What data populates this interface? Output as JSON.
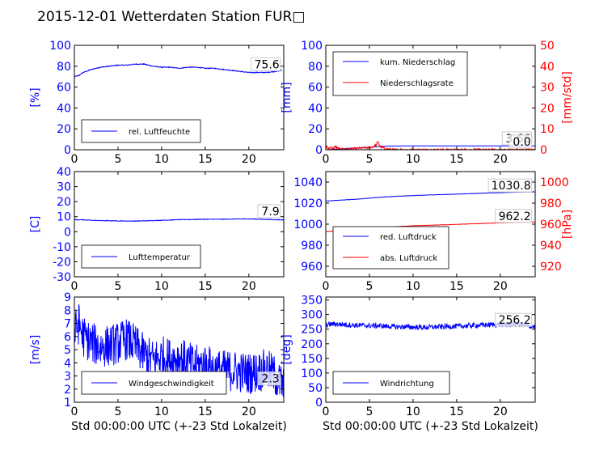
{
  "title": "2015-12-01 Wetterdaten Station FUR□",
  "colors": {
    "primary": "#0000ff",
    "secondary": "#ff0000",
    "text": "#000000"
  },
  "chart_data": [
    {
      "id": "humidity",
      "type": "line",
      "xlabel": "",
      "ylabel": "[%]",
      "xlim": [
        0,
        24
      ],
      "ylim": [
        0,
        100
      ],
      "xticks": [
        0,
        5,
        10,
        15,
        20
      ],
      "yticks": [
        0,
        20,
        40,
        60,
        80,
        100
      ],
      "legend": "lower-left",
      "annotations": [
        {
          "text": "75.6",
          "x": 23.6,
          "y": 78
        }
      ],
      "series": [
        {
          "name": "rel. Luftfeuchte",
          "color": "#0000ff",
          "noise": 0.4,
          "x": [
            0,
            0.5,
            1,
            2,
            3,
            4,
            5,
            6,
            7,
            8,
            8.5,
            9,
            10,
            11,
            12,
            13,
            14,
            15,
            16,
            17,
            18,
            19,
            20,
            21,
            22,
            23,
            23.8
          ],
          "y": [
            70,
            71,
            74,
            77,
            79,
            80,
            81,
            81,
            82,
            82,
            81,
            80,
            79,
            79,
            78,
            79,
            79,
            78,
            78,
            77,
            76,
            75,
            74,
            74,
            74,
            75,
            76
          ]
        }
      ]
    },
    {
      "id": "rain",
      "type": "line",
      "xlabel": "",
      "ylabel": "[mm]",
      "y2label": "[mm/std]",
      "xlim": [
        0,
        24
      ],
      "ylim": [
        0,
        100
      ],
      "y2lim": [
        0,
        50
      ],
      "xticks": [
        0,
        5,
        10,
        15,
        20
      ],
      "yticks": [
        0,
        20,
        40,
        60,
        80,
        100
      ],
      "y2ticks": [
        0,
        10,
        20,
        30,
        40,
        50
      ],
      "legend": "top-left",
      "annotations": [
        {
          "text": "3.66",
          "x": 23.6,
          "y": 7
        },
        {
          "text": "0.0",
          "x": 23.6,
          "y": 4
        }
      ],
      "series": [
        {
          "name": "kum. Niederschlag",
          "color": "#0000ff",
          "axis": "left",
          "x": [
            0,
            1,
            2,
            3,
            4,
            5,
            5.5,
            6,
            6.5,
            7,
            8,
            10,
            12,
            15,
            18,
            20,
            22,
            24
          ],
          "y": [
            0,
            0.5,
            1.0,
            1.4,
            1.8,
            2.2,
            2.6,
            3.0,
            3.3,
            3.5,
            3.6,
            3.62,
            3.64,
            3.65,
            3.66,
            3.66,
            3.66,
            3.66
          ]
        },
        {
          "name": "Niederschlagsrate",
          "color": "#ff0000",
          "axis": "right",
          "noise": 0.5,
          "x": [
            0,
            0.1,
            0.3,
            0.5,
            0.8,
            1,
            1.5,
            2,
            3,
            4,
            5,
            5.5,
            5.8,
            6,
            6.2,
            6.5,
            7,
            7.5,
            8,
            9,
            10,
            12,
            15,
            18,
            20,
            22,
            24
          ],
          "y": [
            0,
            2.0,
            0.5,
            1.0,
            0.3,
            1.5,
            0.5,
            0.3,
            0.5,
            0.8,
            1.0,
            1.5,
            2.5,
            4.0,
            1.5,
            1.0,
            0.3,
            0.1,
            0,
            0,
            0,
            0,
            0,
            0,
            0,
            0,
            0
          ]
        }
      ]
    },
    {
      "id": "temperature",
      "type": "line",
      "xlabel": "",
      "ylabel": "[C]",
      "xlim": [
        0,
        24
      ],
      "ylim": [
        -30,
        40
      ],
      "xticks": [
        0,
        5,
        10,
        15,
        20
      ],
      "yticks": [
        -30,
        -20,
        -10,
        0,
        10,
        20,
        30,
        40
      ],
      "legend": "lower-left",
      "annotations": [
        {
          "text": "7.9",
          "x": 23.6,
          "y": 11
        }
      ],
      "series": [
        {
          "name": "Lufttemperatur",
          "color": "#0000ff",
          "noise": 0.2,
          "x": [
            0,
            1,
            2,
            3,
            4,
            5,
            6,
            7,
            8,
            9,
            10,
            11,
            12,
            13,
            14,
            15,
            16,
            17,
            18,
            19,
            20,
            21,
            22,
            23,
            24
          ],
          "y": [
            8,
            7.9,
            7.6,
            7.4,
            7.3,
            7.2,
            7.1,
            7.1,
            7.2,
            7.4,
            7.6,
            7.8,
            8,
            8.1,
            8.2,
            8.3,
            8.3,
            8.3,
            8.4,
            8.5,
            8.5,
            8.4,
            8.2,
            8.0,
            7.9
          ]
        }
      ]
    },
    {
      "id": "pressure",
      "type": "line",
      "xlabel": "",
      "ylabel": "",
      "y2label": "[hPa]",
      "xlim": [
        0,
        24
      ],
      "ylim": [
        950,
        1050
      ],
      "y2lim": [
        910,
        1010
      ],
      "xticks": [
        0,
        5,
        10,
        15,
        20
      ],
      "yticks": [
        960,
        980,
        1000,
        1020,
        1040
      ],
      "y2ticks": [
        920,
        940,
        960,
        980,
        1000
      ],
      "legend": "lower-left",
      "annotations": [
        {
          "text": "1030.8",
          "x": 23.6,
          "y": 1033
        },
        {
          "text": "962.2",
          "x": 23.6,
          "y": 1004
        }
      ],
      "series": [
        {
          "name": "red. Luftdruck",
          "color": "#0000ff",
          "axis": "left",
          "noise": 0.15,
          "x": [
            0,
            2,
            4,
            6,
            8,
            10,
            12,
            14,
            16,
            18,
            20,
            22,
            24
          ],
          "y": [
            1022,
            1023,
            1024,
            1025.5,
            1026.5,
            1027.2,
            1027.8,
            1028.3,
            1028.9,
            1029.5,
            1030.0,
            1030.5,
            1030.8
          ]
        },
        {
          "name": "abs. Luftdruck",
          "color": "#ff0000",
          "axis": "right",
          "noise": 0.15,
          "x": [
            0,
            2,
            4,
            6,
            8,
            10,
            12,
            14,
            16,
            18,
            20,
            22,
            24
          ],
          "y": [
            953,
            954,
            955.2,
            956.5,
            957.6,
            958.5,
            959.0,
            959.5,
            960.1,
            960.7,
            961.3,
            961.8,
            962.2
          ]
        }
      ]
    },
    {
      "id": "wind",
      "type": "line",
      "xlabel": "Std 00:00:00 UTC (+-23 Std Lokalzeit)",
      "ylabel": "[m/s]",
      "xlim": [
        0,
        24
      ],
      "ylim": [
        1,
        9
      ],
      "xticks": [
        0,
        5,
        10,
        15,
        20
      ],
      "yticks": [
        1,
        2,
        3,
        4,
        5,
        6,
        7,
        8,
        9
      ],
      "legend": "lower-left",
      "annotations": [
        {
          "text": "2.3",
          "x": 23.6,
          "y": 2.5
        }
      ],
      "series": [
        {
          "name": "Windgeschwindigkeit",
          "color": "#0000ff",
          "noise": 1.6,
          "x": [
            0,
            0.5,
            1,
            2,
            3,
            4,
            5,
            6,
            7,
            8,
            9,
            10,
            11,
            12,
            13,
            14,
            15,
            16,
            17,
            18,
            19,
            20,
            21,
            22,
            23,
            23.5,
            24
          ],
          "y": [
            6.2,
            7.0,
            6.0,
            5.5,
            5.2,
            5.3,
            5.5,
            5.8,
            5.3,
            4.6,
            4.2,
            4.5,
            4.3,
            4.4,
            4.0,
            3.8,
            3.9,
            3.5,
            3.4,
            3.4,
            3.3,
            3.2,
            3.3,
            3.5,
            3.0,
            2.5,
            2.3
          ]
        }
      ]
    },
    {
      "id": "winddir",
      "type": "line",
      "xlabel": "Std 00:00:00 UTC (+-23 Std Lokalzeit)",
      "ylabel": "[deg]",
      "xlim": [
        0,
        24
      ],
      "ylim": [
        0,
        360
      ],
      "xticks": [
        0,
        5,
        10,
        15,
        20
      ],
      "yticks": [
        0,
        50,
        100,
        150,
        200,
        250,
        300,
        350
      ],
      "legend": "lower-left",
      "annotations": [
        {
          "text": "256.2",
          "x": 23.6,
          "y": 268
        }
      ],
      "series": [
        {
          "name": "Windrichtung",
          "color": "#0000ff",
          "noise": 9,
          "x": [
            0,
            1,
            2,
            3,
            4,
            5,
            6,
            7,
            8,
            9,
            10,
            11,
            12,
            13,
            14,
            15,
            16,
            17,
            18,
            19,
            20,
            21,
            22,
            23,
            24
          ],
          "y": [
            265,
            268,
            266,
            264,
            263,
            262,
            262,
            260,
            258,
            258,
            257,
            256,
            257,
            258,
            259,
            260,
            261,
            263,
            264,
            265,
            266,
            266,
            267,
            262,
            258
          ]
        }
      ]
    }
  ]
}
